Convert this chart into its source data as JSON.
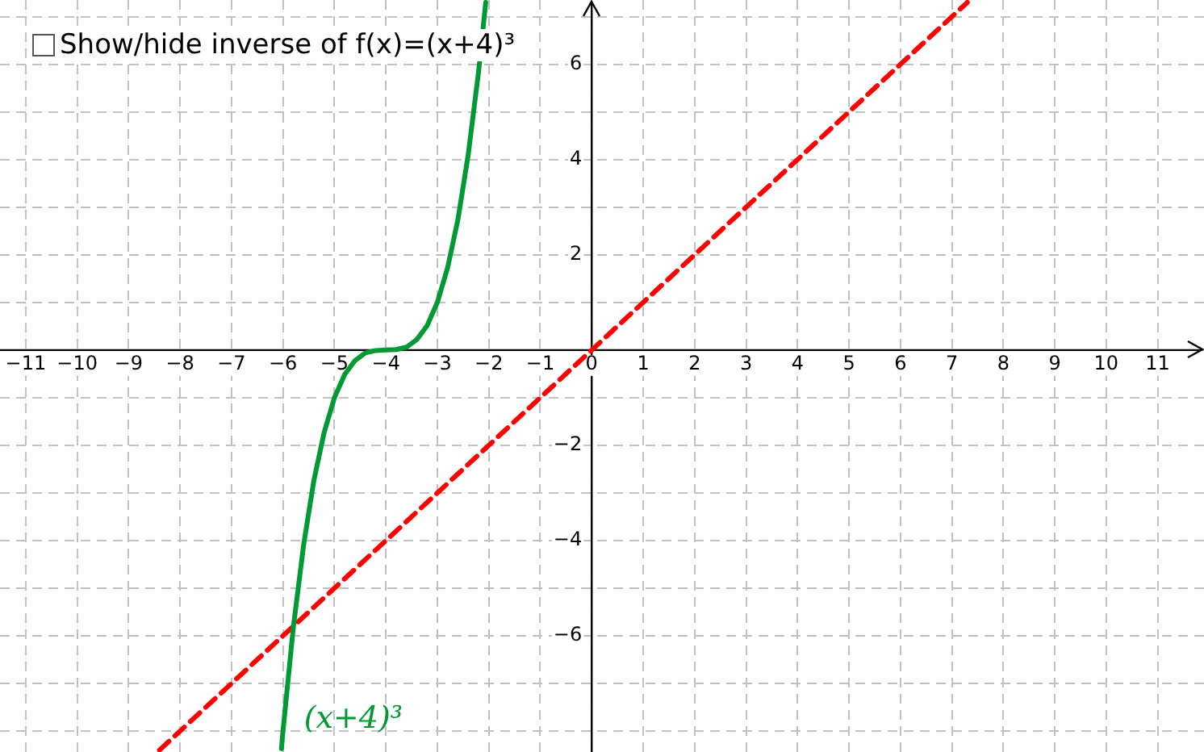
{
  "chart_data": {
    "type": "line",
    "annotations": [
      "Show/hide inverse of f(x)=(x+4)³"
    ],
    "xlim": [
      -11.5,
      11.9
    ],
    "ylim": [
      -8.44,
      7.35
    ],
    "xticks": [
      {
        "value": -11,
        "label": "−11"
      },
      {
        "value": -10,
        "label": "−10"
      },
      {
        "value": -9,
        "label": "−9"
      },
      {
        "value": -8,
        "label": "−8"
      },
      {
        "value": -7,
        "label": "−7"
      },
      {
        "value": -6,
        "label": "−6"
      },
      {
        "value": -5,
        "label": "−5"
      },
      {
        "value": -4,
        "label": "−4"
      },
      {
        "value": -3,
        "label": "−3"
      },
      {
        "value": -2,
        "label": "−2"
      },
      {
        "value": -1,
        "label": "−1"
      },
      0,
      1,
      2,
      3,
      4,
      5,
      6,
      7,
      8,
      9,
      10,
      11
    ],
    "yticks": [
      {
        "value": -8,
        "label": null
      },
      {
        "value": -7,
        "label": null
      },
      {
        "value": -6,
        "label": "−6"
      },
      {
        "value": -5,
        "label": null
      },
      {
        "value": -4,
        "label": "−4"
      },
      {
        "value": -3,
        "label": null
      },
      {
        "value": -2,
        "label": "−2"
      },
      {
        "value": -1,
        "label": null
      },
      {
        "value": 0,
        "label": null
      },
      {
        "value": 1,
        "label": null
      },
      2,
      {
        "value": 3,
        "label": null
      },
      4,
      {
        "value": 5,
        "label": null
      },
      6,
      {
        "value": 7,
        "label": null
      }
    ],
    "grid": true,
    "legend": false,
    "marker": "none",
    "series": [
      {
        "name": "(x+4)³",
        "color": "#009933",
        "line_style": "solid",
        "x": [
          -6.03,
          -6,
          -5.8,
          -5.6,
          -5.4,
          -5.2,
          -5,
          -4.8,
          -4.6,
          -4.4,
          -4.2,
          -4,
          -3.8,
          -3.6,
          -3.4,
          -3.2,
          -3,
          -2.8,
          -2.6,
          -2.4,
          -2.2,
          -2.06
        ],
        "values": [
          -8.37,
          -8,
          -5.83,
          -4.1,
          -2.74,
          -1.73,
          -1,
          -0.51,
          -0.22,
          -0.06,
          -0.01,
          0,
          0.01,
          0.06,
          0.22,
          0.51,
          1,
          1.73,
          2.74,
          4.1,
          5.83,
          7.3
        ]
      },
      {
        "color": "#ff0000",
        "line_style": "dashed",
        "x": [
          -8.4,
          7.3
        ],
        "values": [
          -8.4,
          7.3
        ]
      }
    ]
  }
}
